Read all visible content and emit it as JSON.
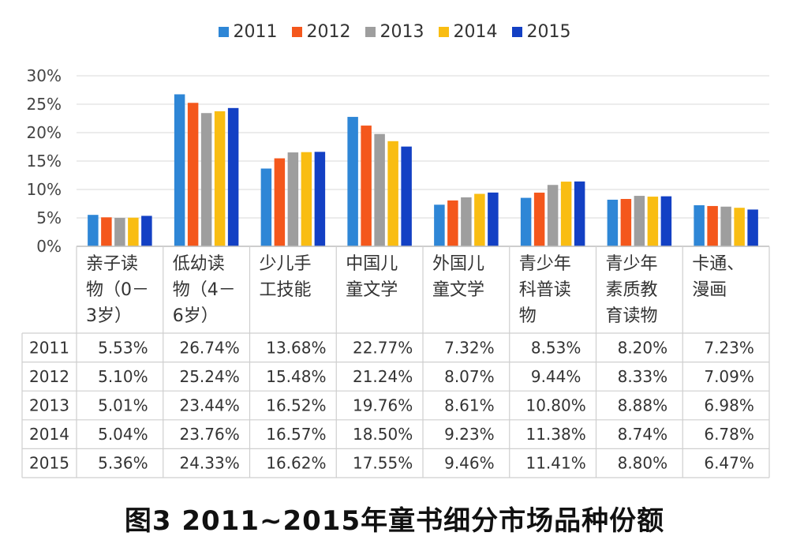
{
  "caption": "图3  2011~2015年童书细分市场品种份额",
  "chart_data": {
    "type": "bar",
    "categories": [
      "亲子读物（0－3岁）",
      "低幼读物（4－6岁）",
      "少儿手工技能",
      "中国儿童文学",
      "外国儿童文学",
      "青少年科普读物",
      "青少年素质教育读物",
      "卡通、漫画"
    ],
    "category_lines": [
      [
        "亲子读",
        "物（0－",
        "3岁）"
      ],
      [
        "低幼读",
        "物（4－",
        "6岁）"
      ],
      [
        "少儿手",
        "工技能"
      ],
      [
        "中国儿",
        "童文学"
      ],
      [
        "外国儿",
        "童文学"
      ],
      [
        "青少年",
        "科普读",
        "物"
      ],
      [
        "青少年",
        "素质教",
        "育读物"
      ],
      [
        "卡通、",
        "漫画"
      ]
    ],
    "series": [
      {
        "name": "2011",
        "color": "#2e86d6",
        "values": [
          5.53,
          26.74,
          13.68,
          22.77,
          7.32,
          8.53,
          8.2,
          7.23
        ],
        "labels": [
          "5.53%",
          "26.74%",
          "13.68%",
          "22.77%",
          "7.32%",
          "8.53%",
          "8.20%",
          "7.23%"
        ]
      },
      {
        "name": "2012",
        "color": "#f4571c",
        "values": [
          5.1,
          25.24,
          15.48,
          21.24,
          8.07,
          9.44,
          8.33,
          7.09
        ],
        "labels": [
          "5.10%",
          "25.24%",
          "15.48%",
          "21.24%",
          "8.07%",
          "9.44%",
          "8.33%",
          "7.09%"
        ]
      },
      {
        "name": "2013",
        "color": "#9e9e9e",
        "values": [
          5.01,
          23.44,
          16.52,
          19.76,
          8.61,
          10.8,
          8.88,
          6.98
        ],
        "labels": [
          "5.01%",
          "23.44%",
          "16.52%",
          "19.76%",
          "8.61%",
          "10.80%",
          "8.88%",
          "6.98%"
        ]
      },
      {
        "name": "2014",
        "color": "#f9bd12",
        "values": [
          5.04,
          23.76,
          16.57,
          18.5,
          9.23,
          11.38,
          8.74,
          6.78
        ],
        "labels": [
          "5.04%",
          "23.76%",
          "16.57%",
          "18.50%",
          "9.23%",
          "11.38%",
          "8.74%",
          "6.78%"
        ]
      },
      {
        "name": "2015",
        "color": "#1340c4",
        "values": [
          5.36,
          24.33,
          16.62,
          17.55,
          9.46,
          11.41,
          8.8,
          6.47
        ],
        "labels": [
          "5.36%",
          "24.33%",
          "16.62%",
          "17.55%",
          "9.46%",
          "11.41%",
          "8.80%",
          "6.47%"
        ]
      }
    ],
    "yticks": [
      "0%",
      "5%",
      "10%",
      "15%",
      "20%",
      "25%",
      "30%"
    ],
    "ylim": [
      0,
      30
    ],
    "grid": true,
    "legend": "top-center",
    "data_table": true
  }
}
